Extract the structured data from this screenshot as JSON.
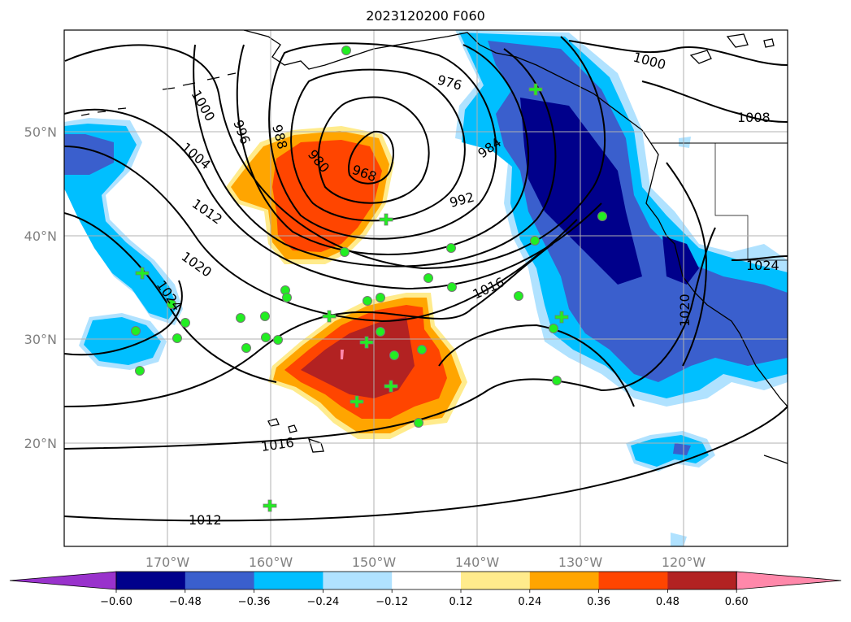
{
  "title": "2023120200 F060",
  "latitude_labels": [
    "50°N",
    "40°N",
    "30°N",
    "20°N"
  ],
  "longitude_labels": [
    "170°W",
    "160°W",
    "150°W",
    "140°W",
    "130°W",
    "120°W"
  ],
  "isobar_labels": [
    "1000",
    "996",
    "988",
    "980",
    "968",
    "976",
    "984",
    "992",
    "1004",
    "1012",
    "1020",
    "1024",
    "1016",
    "1016",
    "1012",
    "1000",
    "1008",
    "1024",
    "1020"
  ],
  "colorbar": {
    "ticks": [
      "−0.60",
      "−0.48",
      "−0.36",
      "−0.24",
      "−0.12",
      "0.12",
      "0.24",
      "0.36",
      "0.48",
      "0.60"
    ],
    "colors": [
      "#9932cc",
      "#00008b",
      "#3a5fcd",
      "#00bfff",
      "#b0e2ff",
      "#ffffff",
      "#ffeb8c",
      "#ffa500",
      "#ff4500",
      "#b22222",
      "#ff88aa"
    ]
  },
  "station_color": "#22ee22"
}
